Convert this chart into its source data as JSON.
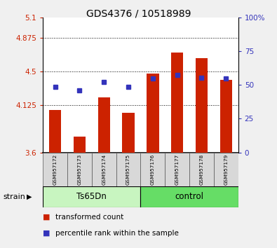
{
  "title": "GDS4376 / 10518989",
  "samples": [
    "GSM957172",
    "GSM957173",
    "GSM957174",
    "GSM957175",
    "GSM957176",
    "GSM957177",
    "GSM957178",
    "GSM957179"
  ],
  "bar_bottom": 3.6,
  "red_values": [
    4.07,
    3.78,
    4.21,
    4.04,
    4.48,
    4.71,
    4.65,
    4.41
  ],
  "blue_values_left": [
    4.33,
    4.29,
    4.38,
    4.33,
    4.42,
    4.46,
    4.43,
    4.42
  ],
  "ylim_left": [
    3.6,
    5.1
  ],
  "ylim_right": [
    0,
    100
  ],
  "yticks_left": [
    3.6,
    4.125,
    4.5,
    4.875,
    5.1
  ],
  "yticks_right": [
    0,
    25,
    50,
    75,
    100
  ],
  "ytick_labels_left": [
    "3.6",
    "4.125",
    "4.5",
    "4.875",
    "5.1"
  ],
  "ytick_labels_right": [
    "0",
    "25",
    "50",
    "75",
    "100%"
  ],
  "grid_lines": [
    4.125,
    4.5,
    4.875
  ],
  "bar_color": "#cc2200",
  "blue_color": "#3333bb",
  "groups": [
    {
      "label": "Ts65Dn",
      "span": [
        0,
        3
      ],
      "color": "#c8f5c0"
    },
    {
      "label": "control",
      "span": [
        4,
        7
      ],
      "color": "#66dd66"
    }
  ],
  "strain_label": "strain",
  "bg_color": "#f0f0f0",
  "plot_bg": "#ffffff",
  "bar_width": 0.5,
  "legend_items": [
    {
      "color": "#cc2200",
      "label": "transformed count"
    },
    {
      "color": "#3333bb",
      "label": "percentile rank within the sample"
    }
  ]
}
